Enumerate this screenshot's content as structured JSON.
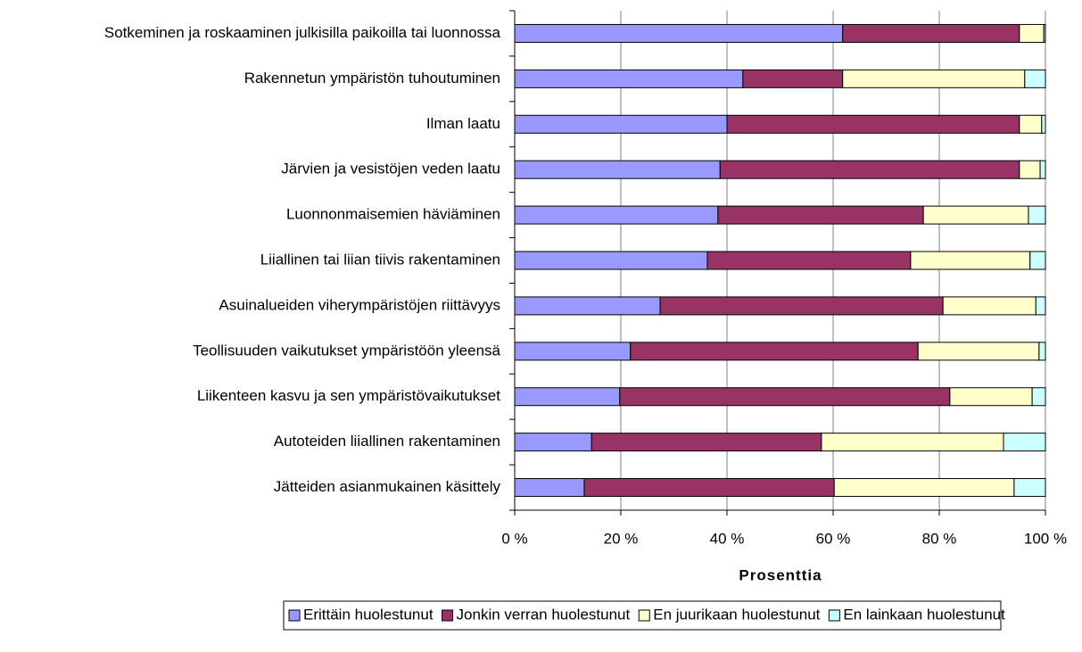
{
  "chart_data": {
    "type": "stacked-barh",
    "categories": [
      "Sotkeminen ja roskaaminen julkisilla paikoilla tai luonnossa",
      "Rakennetun ympäristön tuhoutuminen",
      "Ilman laatu",
      "Järvien ja vesistöjen veden laatu",
      "Luonnonmaisemien häviäminen",
      "Liiallinen tai liian tiivis rakentaminen",
      "Asuinalueiden viherympäristöjen riittävyys",
      "Teollisuuden vaikutukset ympäristöön yleensä",
      "Liikenteen kasvu ja sen ympäristövaikutukset",
      "Autoteiden liiallinen rakentaminen",
      "Jätteiden asianmukainen käsittely"
    ],
    "series": [
      {
        "name": "Erittäin huolestunut",
        "color": "#9999ff",
        "values": [
          61.8,
          43.0,
          40.0,
          38.7,
          38.3,
          36.3,
          27.4,
          21.8,
          19.8,
          14.5,
          13.1
        ]
      },
      {
        "name": "Jonkin verran huolestunut",
        "color": "#993366",
        "values": [
          33.3,
          18.8,
          55.1,
          56.4,
          38.7,
          38.3,
          53.3,
          54.2,
          62.2,
          43.3,
          47.1
        ]
      },
      {
        "name": "En juurikaan huolestunut",
        "color": "#ffffcc",
        "values": [
          4.6,
          34.3,
          4.2,
          3.9,
          19.8,
          22.5,
          17.5,
          22.8,
          15.5,
          34.3,
          33.9
        ]
      },
      {
        "name": "En lainkaan huolestunut",
        "color": "#ccffff",
        "values": [
          0.3,
          3.9,
          0.7,
          1.0,
          3.2,
          2.9,
          1.8,
          1.2,
          2.5,
          7.9,
          5.9
        ]
      }
    ],
    "xlabel": "Prosenttia",
    "xlim": [
      0,
      100
    ],
    "xticks": [
      {
        "value": 0,
        "label": "0 %"
      },
      {
        "value": 20,
        "label": "20 %"
      },
      {
        "value": 40,
        "label": "40 %"
      },
      {
        "value": 60,
        "label": "60 %"
      },
      {
        "value": 80,
        "label": "80 %"
      },
      {
        "value": 100,
        "label": "100 %"
      }
    ],
    "grid": true,
    "legend": "bottom"
  }
}
